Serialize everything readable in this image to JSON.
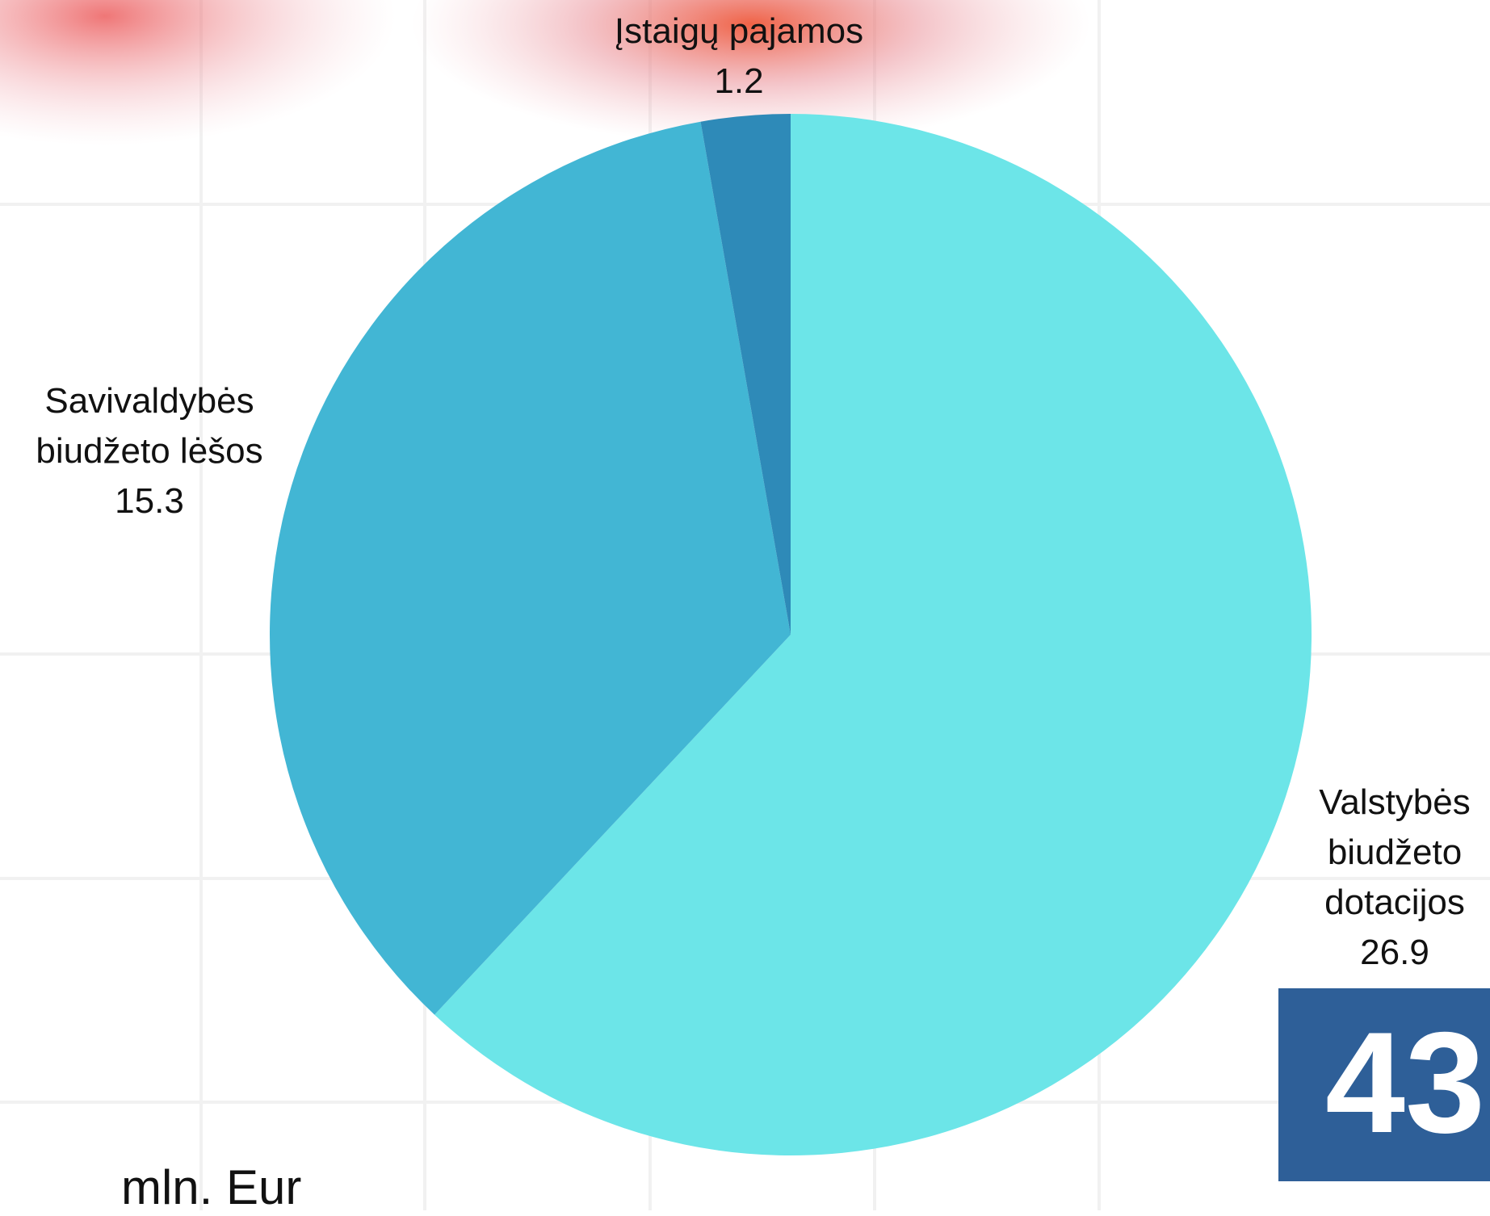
{
  "chart_data": {
    "type": "pie",
    "categories": [
      "Valstybės biudžeto dotacijos",
      "Savivaldybės biudžeto lėšos",
      "Įstaigų pajamos"
    ],
    "values": [
      26.9,
      15.3,
      1.2
    ],
    "colors": [
      "#6ce5e8",
      "#42b6d4",
      "#2e8ab8"
    ],
    "unit": "mln. Eur",
    "total": 43
  }
}
